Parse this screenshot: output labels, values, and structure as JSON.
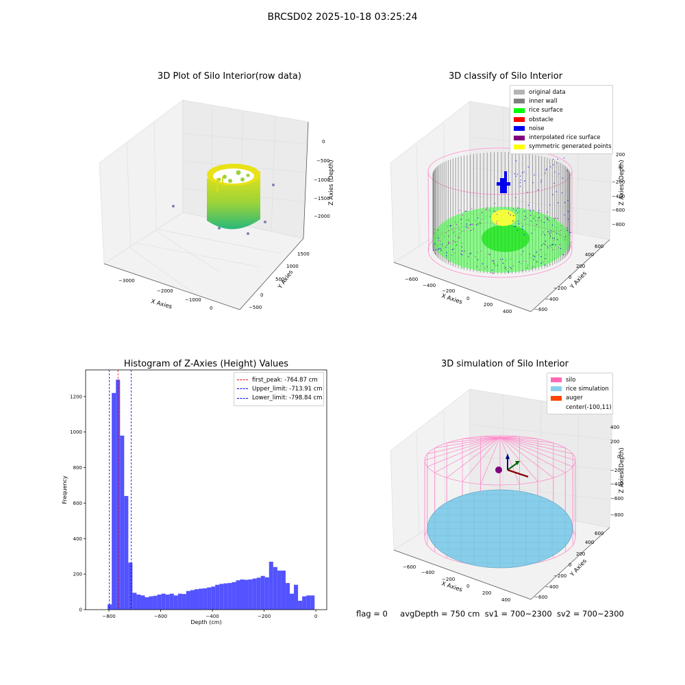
{
  "suptitle": "BRCSD02 2025-10-18 03:25:24",
  "panel_raw": {
    "title": "3D Plot of Silo Interior(row data)",
    "xlabel": "X Axies",
    "ylabel": "Y Axies",
    "zlabel": "Z Axies (Depth)",
    "x_ticks": [
      "−3000",
      "−2000",
      "−1000",
      "0"
    ],
    "y_ticks": [
      "−500",
      "0",
      "500",
      "1000",
      "1500"
    ],
    "z_ticks": [
      "0",
      "−500",
      "−1000",
      "−1500",
      "−2000"
    ],
    "colors": {
      "top": "#e8e216",
      "bottom": "#28b87a",
      "outlier": "#6a6aa8"
    }
  },
  "panel_classify": {
    "title": "3D classify of Silo Interior",
    "xlabel": "X Axies",
    "ylabel": "Y Axies",
    "zlabel": "Z Axies (Depth)",
    "x_ticks": [
      "−600",
      "−400",
      "−200",
      "0",
      "200",
      "400"
    ],
    "y_ticks": [
      "−600",
      "−400",
      "−200",
      "0",
      "200",
      "400",
      "600"
    ],
    "z_ticks": [
      "200",
      "0",
      "−200",
      "−400",
      "−600",
      "−800"
    ],
    "legend": [
      {
        "label": "original data",
        "color": "#b3b3b3"
      },
      {
        "label": "inner wall",
        "color": "#808080"
      },
      {
        "label": "rice surface",
        "color": "#00ff00"
      },
      {
        "label": "obstacle",
        "color": "#ff0000"
      },
      {
        "label": "noise",
        "color": "#0000ee"
      },
      {
        "label": "interpolated rice surface",
        "color": "#800080"
      },
      {
        "label": "symmetric generated points",
        "color": "#ffff00"
      }
    ],
    "legend_position": "upper right"
  },
  "panel_sim": {
    "title": "3D simulation of Silo Interior",
    "xlabel": "X Axies",
    "ylabel": "Y Axies",
    "zlabel": "Z Axies (Depth)",
    "x_ticks": [
      "−600",
      "−400",
      "−200",
      "0",
      "200",
      "400"
    ],
    "y_ticks": [
      "−600",
      "−400",
      "−200",
      "0",
      "200",
      "400",
      "600"
    ],
    "z_ticks": [
      "400",
      "200",
      "0",
      "−200",
      "−400",
      "−600",
      "−800"
    ],
    "legend": [
      {
        "label": "silo",
        "color": "#ff69b4"
      },
      {
        "label": "rice simulation",
        "color": "#87ceeb"
      },
      {
        "label": "auger",
        "color": "#ff4500"
      },
      {
        "label": "center(-100,11)",
        "color": ""
      }
    ],
    "legend_position": "upper right",
    "status": {
      "flag": "flag = 0",
      "avg": "avgDepth = 750 cm",
      "sv1": "sv1 = 700~2300",
      "sv2": "sv2 = 700~2300"
    }
  },
  "chart_data": [
    {
      "type": "bar",
      "title": "Histogram of Z-Axies (Height) Values",
      "xlabel": "Depth (cm)",
      "ylabel": "Frequency",
      "xlim": [
        -890,
        42
      ],
      "ylim": [
        0,
        1350
      ],
      "x_ticks": [
        -800,
        -600,
        -400,
        -200,
        0
      ],
      "y_ticks": [
        0,
        200,
        400,
        600,
        800,
        1000,
        1200
      ],
      "bar_color": "#4a4aff",
      "bin_edges": [
        -805,
        -789,
        -773,
        -757,
        -741,
        -725,
        -709,
        -693,
        -677,
        -661,
        -645,
        -629,
        -613,
        -597,
        -581,
        -565,
        -549,
        -533,
        -517,
        -501,
        -485,
        -469,
        -453,
        -437,
        -421,
        -405,
        -389,
        -373,
        -357,
        -341,
        -325,
        -309,
        -293,
        -277,
        -261,
        -245,
        -229,
        -213,
        -197,
        -181,
        -165,
        -149,
        -133,
        -117,
        -101,
        -85,
        -69,
        -53,
        -37,
        -21,
        -5
      ],
      "counts": [
        30,
        1220,
        1295,
        980,
        640,
        265,
        95,
        85,
        80,
        70,
        75,
        78,
        85,
        90,
        85,
        90,
        80,
        90,
        88,
        105,
        110,
        115,
        118,
        120,
        125,
        130,
        140,
        145,
        148,
        150,
        155,
        165,
        170,
        168,
        170,
        175,
        180,
        190,
        182,
        270,
        240,
        220,
        220,
        150,
        90,
        140,
        50,
        75,
        80,
        80
      ],
      "reference_lines": [
        {
          "label": "first_peak: -764.87 cm",
          "x": -764.87,
          "color": "#ff0000"
        },
        {
          "label": "Upper_limit: -713.91 cm",
          "x": -713.91,
          "color": "#0000ff"
        },
        {
          "label": "Lower_limit: -798.84 cm",
          "x": -798.84,
          "color": "#0000ff"
        }
      ],
      "legend_position": "upper right"
    }
  ]
}
